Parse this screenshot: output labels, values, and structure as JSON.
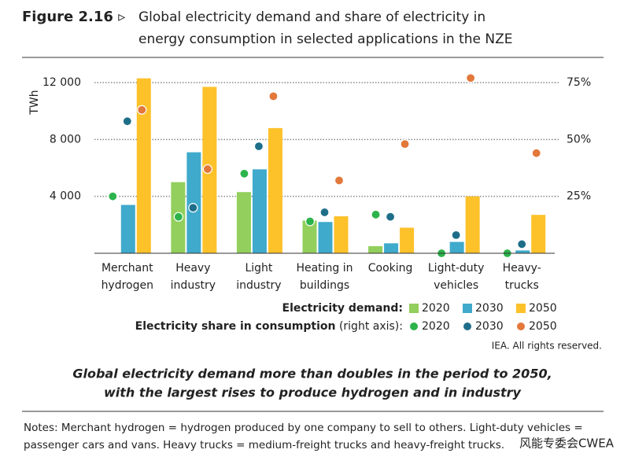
{
  "header": {
    "figure": "Figure 2.16 ▹",
    "title_lines": [
      "Global electricity demand and share of electricity in",
      "energy consumption in selected applications in the NZE"
    ]
  },
  "chart_data": {
    "type": "bar",
    "ylabel": "TWh",
    "categories": [
      [
        "Merchant",
        "hydrogen"
      ],
      [
        "Heavy",
        "industry"
      ],
      [
        "Light",
        "industry"
      ],
      [
        "Heating in",
        "buildings"
      ],
      [
        "Cooking"
      ],
      [
        "Light-duty",
        "vehicles"
      ],
      [
        "Heavy-",
        "trucks"
      ]
    ],
    "series": [
      {
        "name": "2020",
        "type": "bar",
        "color": "#92cf5c",
        "values": [
          0,
          5000,
          4300,
          2300,
          500,
          0,
          0
        ]
      },
      {
        "name": "2030",
        "type": "bar",
        "color": "#3faacb",
        "values": [
          3400,
          7100,
          5900,
          2200,
          700,
          800,
          200
        ]
      },
      {
        "name": "2050",
        "type": "bar",
        "color": "#fdc12a",
        "values": [
          12300,
          11700,
          8800,
          2600,
          1800,
          4000,
          2700
        ]
      },
      {
        "name": "2020",
        "type": "scatter",
        "axis": "y2",
        "color": "#2cb34b",
        "values": [
          25,
          16,
          35,
          14,
          17,
          0,
          0
        ]
      },
      {
        "name": "2030",
        "type": "scatter",
        "axis": "y2",
        "color": "#1e6e8a",
        "values": [
          58,
          20,
          47,
          18,
          16,
          8,
          4
        ]
      },
      {
        "name": "2050",
        "type": "scatter",
        "axis": "y2",
        "color": "#e2783a",
        "values": [
          63,
          37,
          69,
          32,
          48,
          77,
          44
        ]
      }
    ],
    "ylim": [
      0,
      12000
    ],
    "yticks": [
      {
        "value": 4000,
        "label": "4 000"
      },
      {
        "value": 8000,
        "label": "8 000"
      },
      {
        "value": 12000,
        "label": "12 000"
      }
    ],
    "y2lim": [
      0,
      75
    ],
    "y2ticks": [
      {
        "value": 25,
        "label": "25%"
      },
      {
        "value": 50,
        "label": "50%"
      },
      {
        "value": 75,
        "label": "75%"
      }
    ],
    "grid": true,
    "legend_groups": [
      {
        "title": "Electricity demand:"
      },
      {
        "title": "Electricity share in consumption",
        "note": "(right axis):"
      }
    ]
  },
  "source": "IEA. All rights reserved.",
  "caption_lines": [
    "Global electricity demand more than doubles in the period to 2050,",
    "with the largest rises to produce hydrogen and in industry"
  ],
  "notes_lines": [
    "Notes: Merchant hydrogen = hydrogen produced by one company to sell to others. Light-duty vehicles =",
    "passenger cars and vans. Heavy trucks = medium-freight trucks and heavy-freight trucks."
  ],
  "watermark": "风能专委会CWEA"
}
